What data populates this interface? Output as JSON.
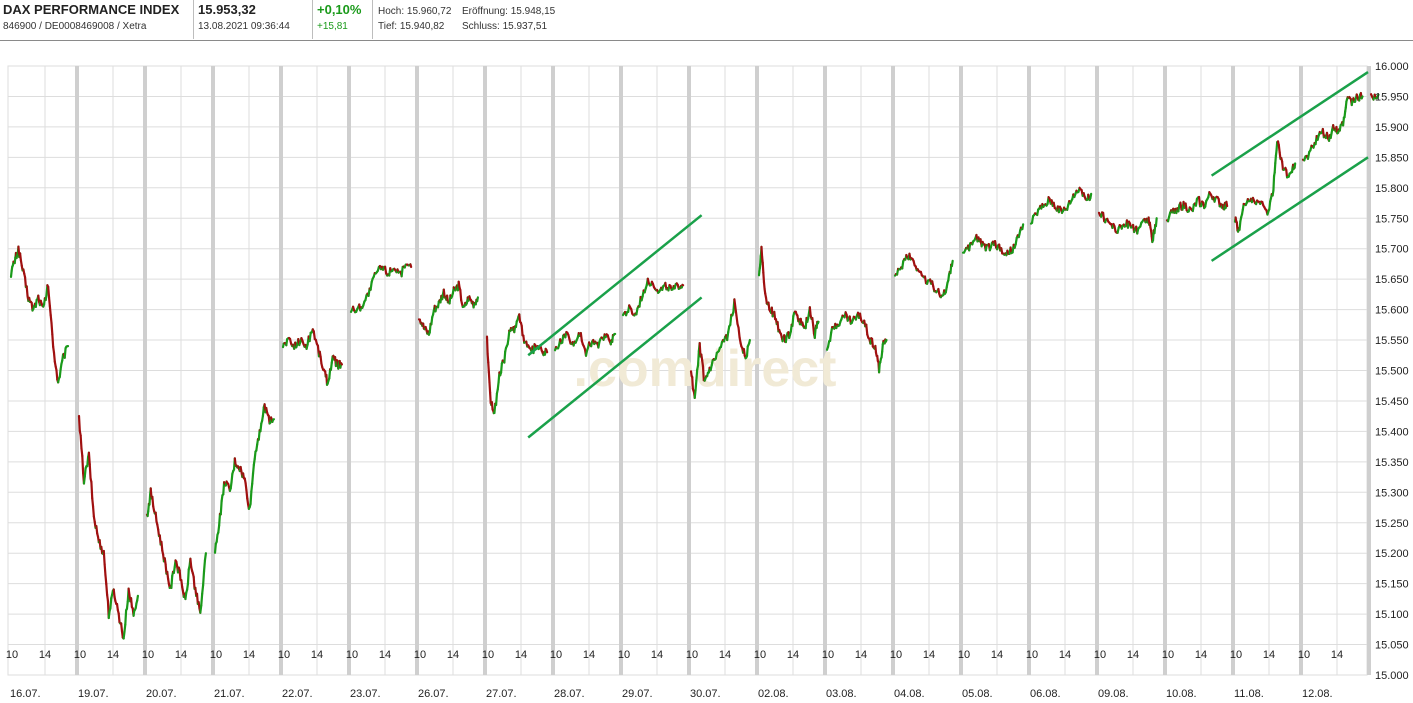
{
  "header": {
    "index_name": "DAX PERFORMANCE INDEX",
    "identifier": "846900 / DE0008469008 / Xetra",
    "price": "15.953,32",
    "timestamp": "13.08.2021 09:36:44",
    "change_pct": "+0,10%",
    "change_abs": "+15,81",
    "high": "Hoch: 15.960,72",
    "open": "Eröffnung: 15.948,15",
    "low": "Tief: 15.940,82",
    "close": "Schluss: 15.937,51",
    "up_color": "#1a9a1a"
  },
  "watermark": ".comdirect",
  "chart_data": {
    "type": "line",
    "style": "candlestick-intraday",
    "title": "",
    "xlabel": "",
    "ylabel": "",
    "ylim": [
      15000,
      16000
    ],
    "y_axis_side": "right",
    "y_ticks": [
      "16.000",
      "15.950",
      "15.900",
      "15.850",
      "15.800",
      "15.750",
      "15.700",
      "15.650",
      "15.600",
      "15.550",
      "15.500",
      "15.450",
      "15.400",
      "15.350",
      "15.300",
      "15.250",
      "15.200",
      "15.150",
      "15.100",
      "15.050",
      "15.000"
    ],
    "grid": true,
    "colors": {
      "up": "#1a9a1a",
      "down": "#a01010",
      "trendline": "#1aa14a",
      "grid": "#dddddd",
      "session_divider": "#cfcfcf"
    },
    "days": [
      {
        "date": "16.07.",
        "ticks": [
          "10",
          "14"
        ],
        "path": [
          [
            0,
            15660
          ],
          [
            0.06,
            15680
          ],
          [
            0.12,
            15700
          ],
          [
            0.2,
            15660
          ],
          [
            0.28,
            15620
          ],
          [
            0.36,
            15600
          ],
          [
            0.44,
            15620
          ],
          [
            0.52,
            15600
          ],
          [
            0.6,
            15640
          ],
          [
            0.68,
            15540
          ],
          [
            0.76,
            15480
          ],
          [
            0.84,
            15520
          ],
          [
            0.92,
            15540
          ]
        ]
      },
      {
        "date": "19.07.",
        "ticks": [
          "10",
          "14"
        ],
        "path": [
          [
            0,
            15420
          ],
          [
            0.08,
            15320
          ],
          [
            0.16,
            15360
          ],
          [
            0.24,
            15260
          ],
          [
            0.32,
            15220
          ],
          [
            0.4,
            15200
          ],
          [
            0.48,
            15100
          ],
          [
            0.56,
            15140
          ],
          [
            0.64,
            15100
          ],
          [
            0.72,
            15060
          ],
          [
            0.8,
            15140
          ],
          [
            0.88,
            15100
          ],
          [
            0.95,
            15130
          ]
        ]
      },
      {
        "date": "20.07.",
        "ticks": [
          "10",
          "14"
        ],
        "path": [
          [
            0,
            15260
          ],
          [
            0.06,
            15300
          ],
          [
            0.14,
            15260
          ],
          [
            0.22,
            15220
          ],
          [
            0.3,
            15180
          ],
          [
            0.38,
            15140
          ],
          [
            0.46,
            15190
          ],
          [
            0.54,
            15160
          ],
          [
            0.62,
            15120
          ],
          [
            0.7,
            15190
          ],
          [
            0.78,
            15140
          ],
          [
            0.86,
            15100
          ],
          [
            0.95,
            15200
          ]
        ]
      },
      {
        "date": "21.07.",
        "ticks": [
          "10",
          "14"
        ],
        "path": [
          [
            0,
            15200
          ],
          [
            0.08,
            15260
          ],
          [
            0.16,
            15320
          ],
          [
            0.24,
            15300
          ],
          [
            0.32,
            15350
          ],
          [
            0.4,
            15340
          ],
          [
            0.48,
            15320
          ],
          [
            0.56,
            15270
          ],
          [
            0.64,
            15360
          ],
          [
            0.72,
            15400
          ],
          [
            0.8,
            15440
          ],
          [
            0.88,
            15420
          ],
          [
            0.95,
            15420
          ]
        ]
      },
      {
        "date": "22.07.",
        "ticks": [
          "10",
          "14"
        ],
        "path": [
          [
            0,
            15540
          ],
          [
            0.08,
            15550
          ],
          [
            0.18,
            15540
          ],
          [
            0.28,
            15550
          ],
          [
            0.38,
            15540
          ],
          [
            0.48,
            15570
          ],
          [
            0.58,
            15530
          ],
          [
            0.66,
            15500
          ],
          [
            0.72,
            15480
          ],
          [
            0.8,
            15520
          ],
          [
            0.88,
            15510
          ],
          [
            0.95,
            15510
          ]
        ]
      },
      {
        "date": "23.07.",
        "ticks": [
          "10",
          "14"
        ],
        "path": [
          [
            0,
            15600
          ],
          [
            0.1,
            15600
          ],
          [
            0.2,
            15610
          ],
          [
            0.3,
            15630
          ],
          [
            0.4,
            15660
          ],
          [
            0.5,
            15670
          ],
          [
            0.6,
            15660
          ],
          [
            0.7,
            15670
          ],
          [
            0.8,
            15660
          ],
          [
            0.9,
            15670
          ],
          [
            0.97,
            15670
          ]
        ]
      },
      {
        "date": "26.07.",
        "ticks": [
          "10",
          "14"
        ],
        "path": [
          [
            0,
            15590
          ],
          [
            0.08,
            15570
          ],
          [
            0.16,
            15560
          ],
          [
            0.24,
            15600
          ],
          [
            0.32,
            15610
          ],
          [
            0.4,
            15630
          ],
          [
            0.48,
            15610
          ],
          [
            0.56,
            15630
          ],
          [
            0.64,
            15640
          ],
          [
            0.72,
            15600
          ],
          [
            0.8,
            15620
          ],
          [
            0.88,
            15610
          ],
          [
            0.95,
            15620
          ]
        ]
      },
      {
        "date": "27.07.",
        "ticks": [
          "10",
          "14"
        ],
        "path": [
          [
            0,
            15550
          ],
          [
            0.06,
            15450
          ],
          [
            0.12,
            15430
          ],
          [
            0.2,
            15490
          ],
          [
            0.28,
            15520
          ],
          [
            0.36,
            15560
          ],
          [
            0.44,
            15570
          ],
          [
            0.52,
            15590
          ],
          [
            0.6,
            15550
          ],
          [
            0.7,
            15530
          ],
          [
            0.8,
            15540
          ],
          [
            0.9,
            15530
          ],
          [
            0.97,
            15530
          ]
        ]
      },
      {
        "date": "28.07.",
        "ticks": [
          "10",
          "14"
        ],
        "path": [
          [
            0,
            15530
          ],
          [
            0.1,
            15550
          ],
          [
            0.2,
            15560
          ],
          [
            0.3,
            15540
          ],
          [
            0.4,
            15560
          ],
          [
            0.5,
            15530
          ],
          [
            0.6,
            15550
          ],
          [
            0.7,
            15540
          ],
          [
            0.8,
            15560
          ],
          [
            0.9,
            15550
          ],
          [
            0.97,
            15560
          ]
        ]
      },
      {
        "date": "29.07.",
        "ticks": [
          "10",
          "14"
        ],
        "path": [
          [
            0,
            15590
          ],
          [
            0.1,
            15600
          ],
          [
            0.2,
            15590
          ],
          [
            0.3,
            15620
          ],
          [
            0.4,
            15650
          ],
          [
            0.5,
            15640
          ],
          [
            0.6,
            15630
          ],
          [
            0.7,
            15640
          ],
          [
            0.8,
            15630
          ],
          [
            0.9,
            15640
          ],
          [
            0.97,
            15640
          ]
        ]
      },
      {
        "date": "30.07.",
        "ticks": [
          "10",
          "14"
        ],
        "path": [
          [
            0,
            15500
          ],
          [
            0.06,
            15450
          ],
          [
            0.14,
            15540
          ],
          [
            0.22,
            15480
          ],
          [
            0.3,
            15500
          ],
          [
            0.4,
            15520
          ],
          [
            0.5,
            15540
          ],
          [
            0.6,
            15560
          ],
          [
            0.7,
            15610
          ],
          [
            0.8,
            15550
          ],
          [
            0.88,
            15520
          ],
          [
            0.95,
            15550
          ]
        ]
      },
      {
        "date": "02.08.",
        "ticks": [
          "10",
          "14"
        ],
        "path": [
          [
            0,
            15660
          ],
          [
            0.04,
            15700
          ],
          [
            0.1,
            15620
          ],
          [
            0.18,
            15600
          ],
          [
            0.26,
            15590
          ],
          [
            0.34,
            15560
          ],
          [
            0.42,
            15550
          ],
          [
            0.5,
            15560
          ],
          [
            0.58,
            15600
          ],
          [
            0.66,
            15580
          ],
          [
            0.74,
            15570
          ],
          [
            0.82,
            15600
          ],
          [
            0.9,
            15560
          ],
          [
            0.96,
            15580
          ]
        ]
      },
      {
        "date": "03.08.",
        "ticks": [
          "10",
          "14"
        ],
        "path": [
          [
            0,
            15540
          ],
          [
            0.1,
            15570
          ],
          [
            0.2,
            15580
          ],
          [
            0.3,
            15590
          ],
          [
            0.4,
            15580
          ],
          [
            0.5,
            15590
          ],
          [
            0.6,
            15580
          ],
          [
            0.7,
            15550
          ],
          [
            0.78,
            15540
          ],
          [
            0.84,
            15500
          ],
          [
            0.9,
            15540
          ],
          [
            0.96,
            15550
          ]
        ]
      },
      {
        "date": "04.08.",
        "ticks": [
          "10",
          "14"
        ],
        "path": [
          [
            0,
            15650
          ],
          [
            0.1,
            15670
          ],
          [
            0.2,
            15690
          ],
          [
            0.3,
            15680
          ],
          [
            0.4,
            15660
          ],
          [
            0.5,
            15650
          ],
          [
            0.6,
            15640
          ],
          [
            0.7,
            15630
          ],
          [
            0.78,
            15620
          ],
          [
            0.86,
            15650
          ],
          [
            0.93,
            15680
          ]
        ]
      },
      {
        "date": "05.08.",
        "ticks": [
          "10",
          "14"
        ],
        "path": [
          [
            0,
            15690
          ],
          [
            0.1,
            15700
          ],
          [
            0.2,
            15720
          ],
          [
            0.3,
            15710
          ],
          [
            0.4,
            15700
          ],
          [
            0.5,
            15710
          ],
          [
            0.6,
            15700
          ],
          [
            0.7,
            15690
          ],
          [
            0.8,
            15700
          ],
          [
            0.9,
            15720
          ],
          [
            0.97,
            15740
          ]
        ]
      },
      {
        "date": "06.08.",
        "ticks": [
          "10",
          "14"
        ],
        "path": [
          [
            0,
            15740
          ],
          [
            0.1,
            15760
          ],
          [
            0.2,
            15770
          ],
          [
            0.3,
            15780
          ],
          [
            0.4,
            15770
          ],
          [
            0.5,
            15760
          ],
          [
            0.6,
            15770
          ],
          [
            0.7,
            15790
          ],
          [
            0.8,
            15800
          ],
          [
            0.9,
            15780
          ],
          [
            0.97,
            15790
          ]
        ]
      },
      {
        "date": "09.08.",
        "ticks": [
          "10",
          "14"
        ],
        "path": [
          [
            0,
            15760
          ],
          [
            0.1,
            15750
          ],
          [
            0.2,
            15740
          ],
          [
            0.3,
            15730
          ],
          [
            0.4,
            15740
          ],
          [
            0.5,
            15740
          ],
          [
            0.6,
            15730
          ],
          [
            0.7,
            15740
          ],
          [
            0.8,
            15750
          ],
          [
            0.86,
            15710
          ],
          [
            0.93,
            15750
          ]
        ]
      },
      {
        "date": "10.08.",
        "ticks": [
          "10",
          "14"
        ],
        "path": [
          [
            0,
            15750
          ],
          [
            0.1,
            15760
          ],
          [
            0.2,
            15770
          ],
          [
            0.3,
            15770
          ],
          [
            0.4,
            15760
          ],
          [
            0.5,
            15780
          ],
          [
            0.6,
            15770
          ],
          [
            0.7,
            15790
          ],
          [
            0.8,
            15780
          ],
          [
            0.9,
            15770
          ],
          [
            0.97,
            15770
          ]
        ]
      },
      {
        "date": "11.08.",
        "ticks": [
          "10",
          "14"
        ],
        "path": [
          [
            0,
            15750
          ],
          [
            0.06,
            15730
          ],
          [
            0.14,
            15770
          ],
          [
            0.24,
            15780
          ],
          [
            0.34,
            15780
          ],
          [
            0.44,
            15770
          ],
          [
            0.54,
            15760
          ],
          [
            0.62,
            15800
          ],
          [
            0.68,
            15880
          ],
          [
            0.76,
            15840
          ],
          [
            0.84,
            15820
          ],
          [
            0.92,
            15830
          ],
          [
            0.97,
            15840
          ]
        ]
      },
      {
        "date": "12.08.",
        "ticks": [
          "10",
          "14"
        ],
        "path": [
          [
            0,
            15840
          ],
          [
            0.12,
            15860
          ],
          [
            0.22,
            15880
          ],
          [
            0.32,
            15890
          ],
          [
            0.42,
            15880
          ],
          [
            0.5,
            15900
          ],
          [
            0.58,
            15890
          ],
          [
            0.66,
            15910
          ],
          [
            0.72,
            15950
          ],
          [
            0.8,
            15940
          ],
          [
            0.88,
            15950
          ],
          [
            0.96,
            15950
          ]
        ]
      },
      {
        "date": "",
        "ticks": [],
        "path": [
          [
            0,
            15950
          ],
          [
            0.12,
            15953
          ]
        ]
      }
    ],
    "trendlines": [
      {
        "from": [
          7.65,
          15525
        ],
        "to": [
          10.2,
          15755
        ]
      },
      {
        "from": [
          7.65,
          15390
        ],
        "to": [
          10.2,
          15620
        ]
      },
      {
        "from": [
          17.7,
          15820
        ],
        "to": [
          20.0,
          15990
        ]
      },
      {
        "from": [
          17.7,
          15680
        ],
        "to": [
          20.0,
          15850
        ]
      }
    ]
  }
}
